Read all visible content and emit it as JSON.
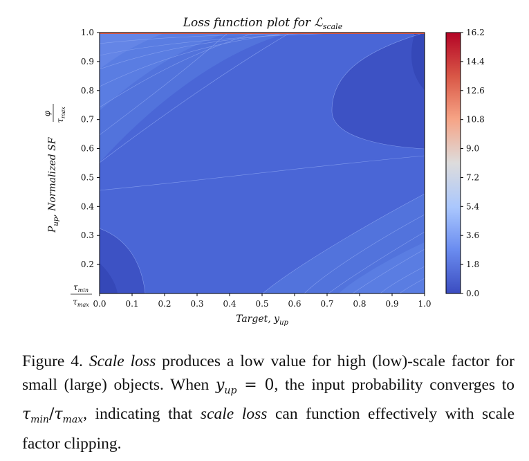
{
  "chart_data": {
    "type": "heatmap",
    "title": "Loss function plot for ℒ",
    "title_sub": "scale",
    "xlabel": "Target, y",
    "xlabel_sub": "up",
    "ylabel": "P",
    "ylabel_sub": "up",
    "ylabel_mid": ", Normalized SF ",
    "ylabel_frac_num": "φ",
    "ylabel_frac_den": "τ",
    "ylabel_frac_den_sub": "max",
    "xlim": [
      0.0,
      1.0
    ],
    "ylim": [
      0.1,
      1.0
    ],
    "x_ticks": [
      "0.0",
      "0.1",
      "0.2",
      "0.3",
      "0.4",
      "0.5",
      "0.6",
      "0.7",
      "0.8",
      "0.9",
      "1.0"
    ],
    "y_ticks": [
      "0.2",
      "0.3",
      "0.4",
      "0.5",
      "0.6",
      "0.7",
      "0.8",
      "0.9",
      "1.0"
    ],
    "y_bottom_label": {
      "num": "τ",
      "num_sub": "min",
      "den": "τ",
      "den_sub": "max"
    },
    "colorbar": {
      "ticks": [
        "0.0",
        "1.8",
        "3.6",
        "5.4",
        "7.2",
        "9.0",
        "10.8",
        "12.6",
        "14.4",
        "16.2"
      ],
      "range": [
        0.0,
        16.2
      ],
      "colormap": "coolwarm",
      "colors": [
        "#3b4cc0",
        "#6b8df0",
        "#aac7fd",
        "#dddcdc",
        "#f6a385",
        "#d95847",
        "#b40426"
      ]
    },
    "grid": false,
    "legend": "none"
  },
  "caption": {
    "figure_label": "Figure 4.",
    "emph1": "Scale loss",
    "text1": " produces a low value for high (low)-scale factor for small (large) objects. When ",
    "math1_var": "y",
    "math1_sub": "up",
    "math1_rest": " = 0",
    "text2": ", the input probability converges to ",
    "math2_a": "τ",
    "math2_a_sub": "min",
    "math2_slash": "/",
    "math2_b": "τ",
    "math2_b_sub": "max",
    "text3": ", indicating that ",
    "emph2": "scale loss",
    "text4": " can function effectively with scale factor clipping."
  }
}
